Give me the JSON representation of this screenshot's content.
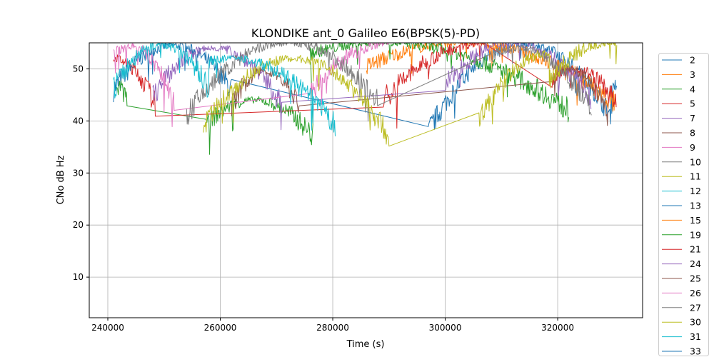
{
  "chart_data": {
    "type": "line",
    "title": "KLONDIKE ant_0 Galileo E6(BPSK(5)-PD)",
    "xlabel": "Time (s)",
    "ylabel": "CNo dB Hz",
    "xlim": [
      236700,
      335100
    ],
    "ylim": [
      2.2,
      55
    ],
    "xticks": [
      240000,
      260000,
      280000,
      300000,
      320000
    ],
    "yticks": [
      10,
      20,
      30,
      40,
      50
    ],
    "grid": true,
    "legend_placement": "outside-right",
    "note": "segments: [start_s, end_s, peak_time_s, peak_cno, edge_cno]",
    "series": [
      {
        "name": "2",
        "color": "#1f77b4",
        "segments": [
          [
            241000,
            262000,
            251500,
            54.5,
            46
          ],
          [
            297000,
            329500,
            314000,
            54.8,
            38
          ],
          [
            329500,
            330500,
            330000,
            47,
            46
          ]
        ]
      },
      {
        "name": "3",
        "color": "#ff7f0e",
        "segments": [
          [
            286000,
            330500,
            303000,
            55,
            43
          ]
        ]
      },
      {
        "name": "4",
        "color": "#2ca02c",
        "segments": [
          [
            241500,
            243500,
            242500,
            47,
            44
          ],
          [
            257500,
            276500,
            266000,
            44,
            37
          ],
          [
            276000,
            322000,
            289000,
            55,
            42
          ]
        ]
      },
      {
        "name": "5",
        "color": "#d62728",
        "segments": [
          [
            241000,
            248500,
            241000,
            52,
            43
          ],
          [
            289000,
            307000,
            307000,
            55,
            44
          ],
          [
            319000,
            330500,
            323000,
            50,
            43
          ]
        ]
      },
      {
        "name": "7",
        "color": "#9467bd",
        "segments": [
          [
            248000,
            271000,
            259000,
            54,
            43
          ],
          [
            300000,
            326000,
            312000,
            55,
            44
          ]
        ]
      },
      {
        "name": "8",
        "color": "#8c564b",
        "segments": [
          [
            262000,
            274000,
            268000,
            49.5,
            43
          ],
          [
            319000,
            329000,
            322000,
            50,
            41
          ]
        ]
      },
      {
        "name": "9",
        "color": "#e377c2",
        "segments": [
          [
            241000,
            252000,
            244000,
            54.3,
            43
          ],
          [
            276000,
            290000,
            290000,
            55,
            45
          ]
        ]
      },
      {
        "name": "10",
        "color": "#7f7f7f",
        "segments": [
          [
            254000,
            288000,
            272000,
            55,
            41
          ],
          [
            308000,
            326000,
            313000,
            54,
            42
          ]
        ]
      },
      {
        "name": "11",
        "color": "#bcbd22",
        "segments": [
          [
            257000,
            290000,
            273000,
            52,
            37
          ],
          [
            306000,
            318500,
            318500,
            53,
            40
          ],
          [
            318500,
            330500,
            329000,
            55,
            48
          ]
        ]
      },
      {
        "name": "12",
        "color": "#17becf",
        "segments": [
          [
            241000,
            258000,
            249500,
            54.7,
            46
          ],
          [
            258000,
            280500,
            262000,
            52,
            39
          ]
        ]
      },
      {
        "name": "13",
        "color": "#1f77b4",
        "segments": []
      },
      {
        "name": "15",
        "color": "#ff7f0e",
        "segments": []
      },
      {
        "name": "19",
        "color": "#2ca02c",
        "segments": []
      },
      {
        "name": "21",
        "color": "#d62728",
        "segments": []
      },
      {
        "name": "24",
        "color": "#9467bd",
        "segments": []
      },
      {
        "name": "25",
        "color": "#8c564b",
        "segments": []
      },
      {
        "name": "26",
        "color": "#e377c2",
        "segments": []
      },
      {
        "name": "27",
        "color": "#7f7f7f",
        "segments": []
      },
      {
        "name": "30",
        "color": "#bcbd22",
        "segments": []
      },
      {
        "name": "31",
        "color": "#17becf",
        "segments": []
      },
      {
        "name": "33",
        "color": "#1f77b4",
        "segments": []
      }
    ]
  }
}
